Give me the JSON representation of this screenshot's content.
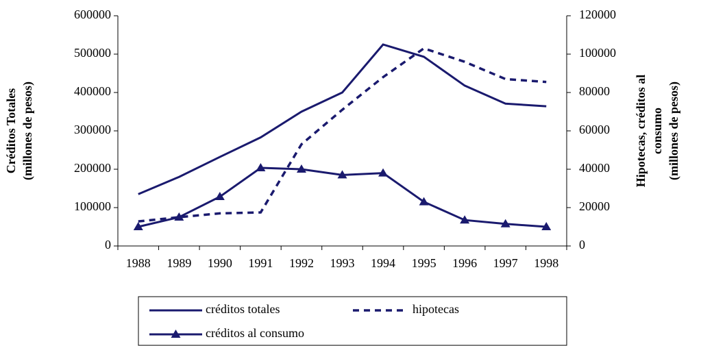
{
  "chart_data": {
    "type": "line",
    "categories": [
      "1988",
      "1989",
      "1990",
      "1991",
      "1992",
      "1993",
      "1994",
      "1995",
      "1996",
      "1997",
      "1998"
    ],
    "y_label": [
      "Créditos Totales",
      "(millones de pesos)"
    ],
    "y2_label": [
      "Hipotecas, créditos al",
      "consumo",
      "(millones de pesos)"
    ],
    "ylim": [
      0,
      600000
    ],
    "yticks": [
      0,
      100000,
      200000,
      300000,
      400000,
      500000,
      600000
    ],
    "y2lim": [
      0,
      120000
    ],
    "y2ticks": [
      0,
      20000,
      40000,
      60000,
      80000,
      100000,
      120000
    ],
    "series": [
      {
        "name": "créditos totales",
        "color": "#1a1a6e",
        "style": "solid",
        "values": [
          135000,
          180000,
          232000,
          283000,
          350000,
          400000,
          525000,
          493000,
          418000,
          371000,
          364000
        ]
      },
      {
        "name": "hipotecas",
        "color": "#1a1a6e",
        "style": "dashed",
        "axis": "y2",
        "values": [
          12800,
          15000,
          17000,
          17500,
          53000,
          71000,
          88000,
          103000,
          96000,
          87000,
          85500
        ]
      },
      {
        "name": "créditos al consumo",
        "color": "#1a1a6e",
        "style": "triangle",
        "axis": "y2",
        "values": [
          10000,
          15000,
          25700,
          40700,
          40000,
          37000,
          38000,
          23000,
          13500,
          11500,
          10000
        ]
      }
    ]
  }
}
